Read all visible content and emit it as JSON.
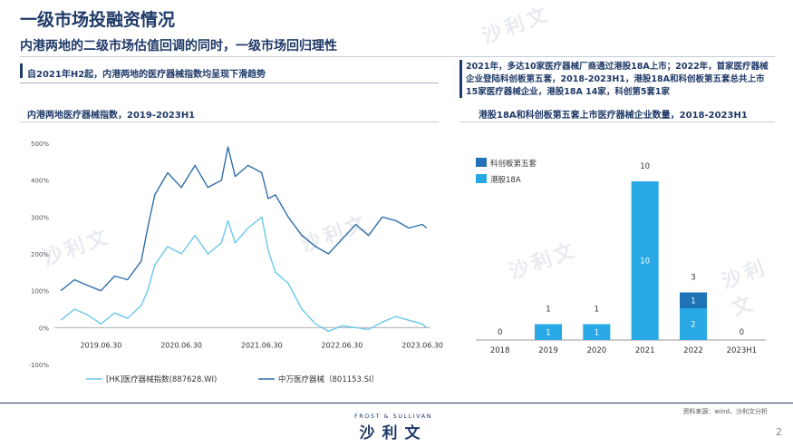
{
  "page": {
    "title": "一级市场投融资情况",
    "subtitle": "内港两地的二级市场估值回调的同时，一级市场回归理性",
    "left_text": "自2021年H2起，内港两地的医疗器械指数均呈现下滑趋势",
    "right_text": "2021年，多达10家医疗器械厂商通过港股18A上市；2022年，首家医疗器械企业登陆科创板第五套，2018-2023H1，港股18A和科创板第五套总共上市15家医疗器械企业，港股18A 14家，科创第5套1家",
    "source": "资料来源：wind、沙利文分析",
    "page_number": "2",
    "logo_top": "FROST & SULLIVAN",
    "logo_main": "沙利文",
    "watermark": "沙利文"
  },
  "colors": {
    "navy": "#1f3a68",
    "line_hk": "#6cc7ec",
    "line_sw": "#2f6fa8",
    "bar_hk18a": "#29a8e6",
    "bar_kcb": "#1f73b6"
  },
  "chart_data": [
    {
      "type": "line",
      "title": "内港两地医疗器械指数，2019-2023H1",
      "ylim": [
        -100,
        500
      ],
      "yticks": [
        "500%",
        "400%",
        "300%",
        "200%",
        "100%",
        "0%",
        "-100%"
      ],
      "ytick_values": [
        500,
        400,
        300,
        200,
        100,
        0,
        -100
      ],
      "xticks": [
        "2019.06.30",
        "2020.06.30",
        "2021.06.30",
        "2022.06.30",
        "2023.06.30"
      ],
      "xtick_values": [
        2019.5,
        2020.5,
        2021.5,
        2022.5,
        2023.5
      ],
      "legend_placement": "bottom",
      "series": [
        {
          "name": "[HK]医疗器械指数(887628.WI)",
          "color": "#6cc7ec",
          "x": [
            2019.0,
            2019.17,
            2019.33,
            2019.5,
            2019.67,
            2019.83,
            2020.0,
            2020.08,
            2020.17,
            2020.33,
            2020.5,
            2020.67,
            2020.83,
            2021.0,
            2021.08,
            2021.17,
            2021.33,
            2021.5,
            2021.58,
            2021.67,
            2021.83,
            2022.0,
            2022.17,
            2022.33,
            2022.5,
            2022.67,
            2022.83,
            2023.0,
            2023.17,
            2023.33,
            2023.5,
            2023.55
          ],
          "y": [
            20,
            50,
            35,
            10,
            40,
            25,
            60,
            100,
            170,
            220,
            200,
            250,
            200,
            230,
            290,
            230,
            270,
            300,
            210,
            150,
            120,
            50,
            10,
            -10,
            5,
            0,
            -5,
            15,
            30,
            20,
            10,
            0
          ]
        },
        {
          "name": "中万医疗器械（801153.SI）",
          "color": "#2f6fa8",
          "x": [
            2019.0,
            2019.17,
            2019.33,
            2019.5,
            2019.67,
            2019.83,
            2020.0,
            2020.08,
            2020.17,
            2020.33,
            2020.5,
            2020.67,
            2020.83,
            2021.0,
            2021.08,
            2021.17,
            2021.33,
            2021.5,
            2021.58,
            2021.67,
            2021.83,
            2022.0,
            2022.17,
            2022.33,
            2022.5,
            2022.67,
            2022.83,
            2023.0,
            2023.17,
            2023.33,
            2023.5,
            2023.55
          ],
          "y": [
            100,
            130,
            115,
            100,
            140,
            130,
            180,
            270,
            360,
            420,
            380,
            440,
            380,
            400,
            490,
            410,
            440,
            420,
            350,
            360,
            300,
            250,
            220,
            200,
            240,
            280,
            250,
            300,
            290,
            270,
            280,
            270
          ]
        }
      ]
    },
    {
      "type": "bar",
      "title": "港股18A和科创板第五套上市医疗器械企业数量，2018-2023H1",
      "categories": [
        "2018",
        "2019",
        "2020",
        "2021",
        "2022",
        "2023H1"
      ],
      "totals": [
        0,
        1,
        1,
        10,
        3,
        0
      ],
      "legend_placement": "top-left",
      "series": [
        {
          "name": "港股18A",
          "color": "#29a8e6",
          "values": [
            0,
            1,
            1,
            10,
            2,
            0
          ]
        },
        {
          "name": "科创板第五套",
          "color": "#1f73b6",
          "values": [
            0,
            0,
            0,
            0,
            1,
            0
          ]
        }
      ]
    }
  ]
}
